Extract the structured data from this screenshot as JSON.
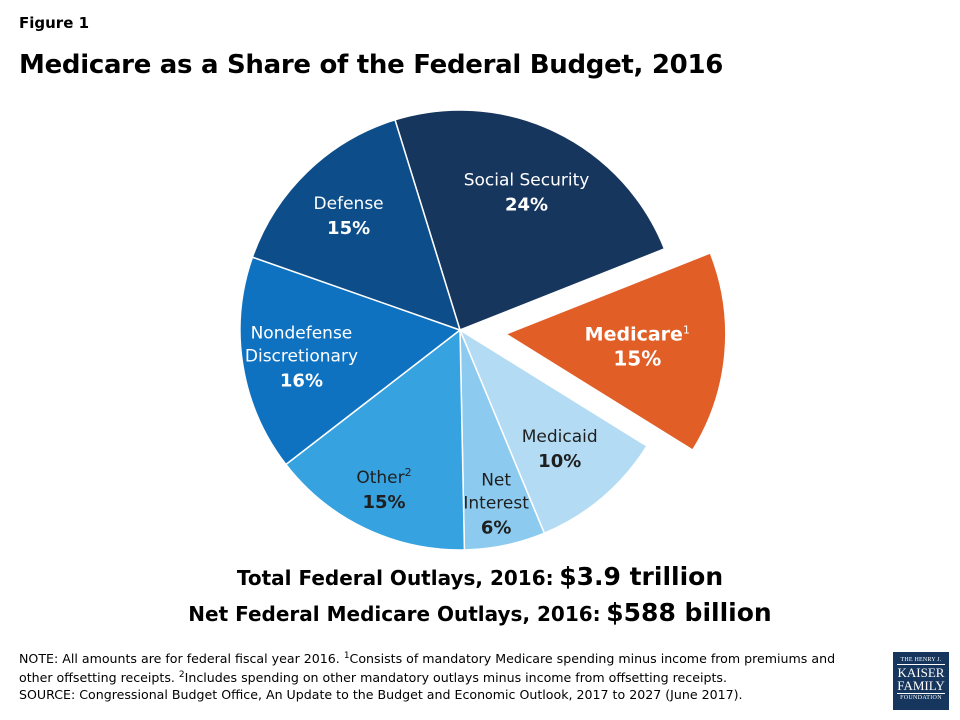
{
  "figure_label": "Figure 1",
  "title": "Medicare as a Share of the Federal Budget, 2016",
  "chart_data": {
    "type": "pie",
    "title": "Medicare as a Share of the Federal Budget, 2016",
    "unit": "%",
    "slices": [
      {
        "label": "Social Security",
        "sup": "",
        "value": 24,
        "display": "24%",
        "color": "#17365d",
        "text_color": "#ffffff",
        "exploded": false
      },
      {
        "label": "Medicare",
        "sup": "1",
        "value": 15,
        "display": "15%",
        "color": "#e15e27",
        "text_color": "#ffffff",
        "exploded": true
      },
      {
        "label": "Medicaid",
        "sup": "",
        "value": 10,
        "display": "10%",
        "color": "#b3dcf4",
        "text_color": "#1f1f1f",
        "exploded": false
      },
      {
        "label": "Net Interest",
        "sup": "",
        "value": 6,
        "display": "6%",
        "color": "#8ccbef",
        "text_color": "#1f1f1f",
        "exploded": false
      },
      {
        "label": "Other",
        "sup": "2",
        "value": 15,
        "display": "15%",
        "color": "#36a2e0",
        "text_color": "#1f1f1f",
        "exploded": false
      },
      {
        "label": "Nondefense Discretionary",
        "sup": "",
        "value": 16,
        "display": "16%",
        "color": "#0f72c1",
        "text_color": "#ffffff",
        "exploded": false
      },
      {
        "label": "Defense",
        "sup": "",
        "value": 15,
        "display": "15%",
        "color": "#0d4e8a",
        "text_color": "#ffffff",
        "exploded": false
      }
    ],
    "legend": "none"
  },
  "totals": {
    "outlays_label": "Total Federal Outlays, 2016:",
    "outlays_value": "$3.9 trillion",
    "medicare_label": "Net Federal Medicare Outlays, 2016:",
    "medicare_value": "$588 billion"
  },
  "notes": {
    "note_a": "NOTE: All amounts are for federal fiscal year 2016. ",
    "sup1": "1",
    "note_b": "Consists of mandatory Medicare spending minus income from premiums and other offsetting receipts. ",
    "sup2": "2",
    "note_c": "Includes spending on other mandatory outlays minus income from offsetting receipts.",
    "source": "SOURCE: Congressional Budget Office, An Update to the Budget and Economic Outlook, 2017 to 2027 (June 2017)."
  },
  "logo": {
    "line1": "THE HENRY J.",
    "line2": "KAISER",
    "line3": "FAMILY",
    "line4": "FOUNDATION"
  }
}
